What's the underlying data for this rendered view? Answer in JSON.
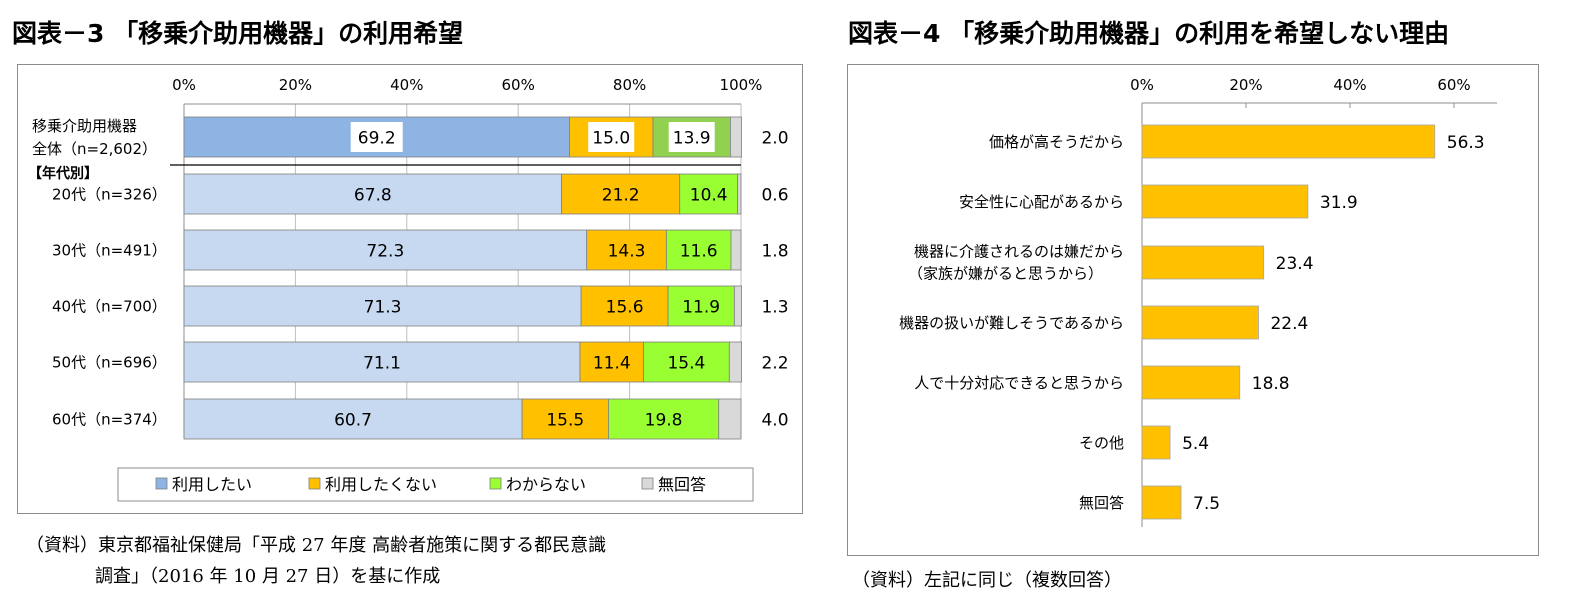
{
  "figure3": {
    "title": "図表－3 「移乗介助用機器」の利用希望",
    "source_line1": "（資料）東京都福祉保健局「平成 27 年度 高齢者施策に関する都民意識",
    "source_line2": "調査」（2016 年 10 月 27 日）を基に作成"
  },
  "figure4": {
    "title": "図表－4 「移乗介助用機器」の利用を希望しない理由",
    "source": "（資料）左記に同じ（複数回答）"
  },
  "chart_data": [
    {
      "type": "bar",
      "orientation": "horizontal",
      "stacked": true,
      "percent_scale": true,
      "xlim": [
        0,
        100
      ],
      "x_ticks": [
        "0%",
        "20%",
        "40%",
        "60%",
        "80%",
        "100%"
      ],
      "group_label": "【年代別】",
      "categories": [
        [
          "移乗介助用機器",
          "全体（n=2,602）"
        ],
        [
          "20代（n=326）"
        ],
        [
          "30代（n=491）"
        ],
        [
          "40代（n=700）"
        ],
        [
          "50代（n=696）"
        ],
        [
          "60代（n=374）"
        ]
      ],
      "series": [
        {
          "name": "利用したい",
          "color": "#8eb4e3",
          "color_age": "#c6d9f1",
          "values": [
            69.2,
            67.8,
            72.3,
            71.3,
            71.1,
            60.7
          ]
        },
        {
          "name": "利用したくない",
          "color": "#ffc000",
          "values": [
            15.0,
            21.2,
            14.3,
            15.6,
            11.4,
            15.5
          ]
        },
        {
          "name": "わからない",
          "color": "#99ff33",
          "color_total": "#92d050",
          "values": [
            13.9,
            10.4,
            11.6,
            11.9,
            15.4,
            19.8
          ]
        },
        {
          "name": "無回答",
          "color": "#d9d9d9",
          "values": [
            2.0,
            0.6,
            1.8,
            1.3,
            2.2,
            4.0
          ]
        }
      ],
      "legend_position": "bottom",
      "grid": true
    },
    {
      "type": "bar",
      "orientation": "horizontal",
      "xlim": [
        0,
        70
      ],
      "x_ticks": [
        "0%",
        "20%",
        "40%",
        "60%"
      ],
      "categories": [
        [
          "価格が高そうだから"
        ],
        [
          "安全性に心配があるから"
        ],
        [
          "機器に介護されるのは嫌だから",
          "（家族が嫌がると思うから）"
        ],
        [
          "機器の扱いが難しそうであるから"
        ],
        [
          "人で十分対応できると思うから"
        ],
        [
          "その他"
        ],
        [
          "無回答"
        ]
      ],
      "series": [
        {
          "color": "#ffc000",
          "values": [
            56.3,
            31.9,
            23.4,
            22.4,
            18.8,
            5.4,
            7.5
          ]
        }
      ],
      "grid": false
    }
  ]
}
